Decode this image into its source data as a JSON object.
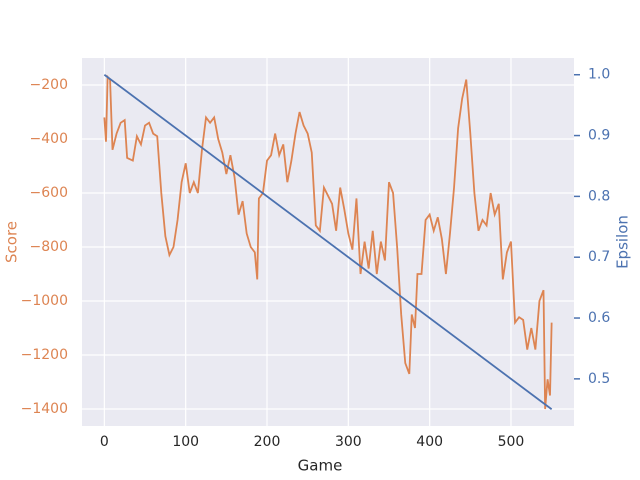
{
  "chart_data": {
    "type": "line",
    "xlabel": "Game",
    "ylabel": "Score",
    "y2label": "Epsilon",
    "xlim": [
      -27.5,
      577.5
    ],
    "xticks": [
      0,
      100,
      200,
      300,
      400,
      500
    ],
    "ylim": [
      -1463,
      -100
    ],
    "yticks": [
      {
        "value": -1400,
        "label": "−1400"
      },
      {
        "value": -1200,
        "label": "−1200"
      },
      {
        "value": -1000,
        "label": "−1000"
      },
      {
        "value": -800,
        "label": "−800"
      },
      {
        "value": -600,
        "label": "−600"
      },
      {
        "value": -400,
        "label": "−400"
      },
      {
        "value": -200,
        "label": "−200"
      }
    ],
    "y2lim": [
      0.4225,
      1.0275
    ],
    "y2ticks": [
      0.5,
      0.6,
      0.7,
      0.8,
      0.9,
      {
        "value": 1,
        "label": "1.0"
      }
    ],
    "grid": true,
    "series": [
      {
        "color": "#dd8452",
        "x": [
          0,
          2,
          4,
          7,
          10,
          15,
          20,
          25,
          28,
          35,
          40,
          45,
          50,
          55,
          60,
          65,
          70,
          75,
          80,
          85,
          90,
          95,
          100,
          105,
          110,
          115,
          120,
          125,
          130,
          135,
          140,
          145,
          150,
          155,
          160,
          165,
          170,
          175,
          180,
          185,
          188,
          190,
          195,
          200,
          205,
          210,
          215,
          220,
          225,
          230,
          235,
          240,
          245,
          250,
          255,
          260,
          265,
          270,
          275,
          280,
          285,
          290,
          295,
          300,
          305,
          310,
          315,
          320,
          325,
          330,
          335,
          340,
          345,
          350,
          355,
          360,
          365,
          370,
          375,
          378,
          382,
          385,
          390,
          395,
          400,
          405,
          410,
          415,
          420,
          425,
          430,
          435,
          440,
          445,
          450,
          455,
          460,
          465,
          470,
          475,
          480,
          485,
          490,
          495,
          500,
          505,
          510,
          515,
          520,
          525,
          530,
          535,
          540,
          542,
          545,
          548,
          550
        ],
        "values": [
          -320,
          -410,
          -170,
          -180,
          -440,
          -380,
          -340,
          -330,
          -470,
          -480,
          -390,
          -420,
          -350,
          -340,
          -380,
          -390,
          -600,
          -760,
          -830,
          -800,
          -700,
          -560,
          -490,
          -600,
          -560,
          -600,
          -440,
          -320,
          -340,
          -320,
          -400,
          -450,
          -530,
          -460,
          -540,
          -680,
          -630,
          -750,
          -800,
          -820,
          -920,
          -620,
          -600,
          -480,
          -460,
          -380,
          -460,
          -420,
          -560,
          -480,
          -380,
          -300,
          -350,
          -380,
          -450,
          -720,
          -740,
          -580,
          -610,
          -640,
          -740,
          -580,
          -660,
          -750,
          -810,
          -620,
          -900,
          -780,
          -880,
          -740,
          -900,
          -780,
          -850,
          -560,
          -600,
          -800,
          -1050,
          -1230,
          -1270,
          -1050,
          -1100,
          -900,
          -900,
          -700,
          -680,
          -740,
          -690,
          -770,
          -900,
          -750,
          -580,
          -360,
          -250,
          -180,
          -380,
          -600,
          -740,
          -700,
          -720,
          -600,
          -680,
          -640,
          -920,
          -820,
          -780,
          -1080,
          -1060,
          -1070,
          -1180,
          -1100,
          -1180,
          -1000,
          -960,
          -1400,
          -1290,
          -1350,
          -1080
        ]
      },
      {
        "color": "#4c72b0",
        "axis": "y2",
        "x": [
          0,
          550
        ],
        "values": [
          1.0,
          0.45
        ]
      }
    ]
  }
}
